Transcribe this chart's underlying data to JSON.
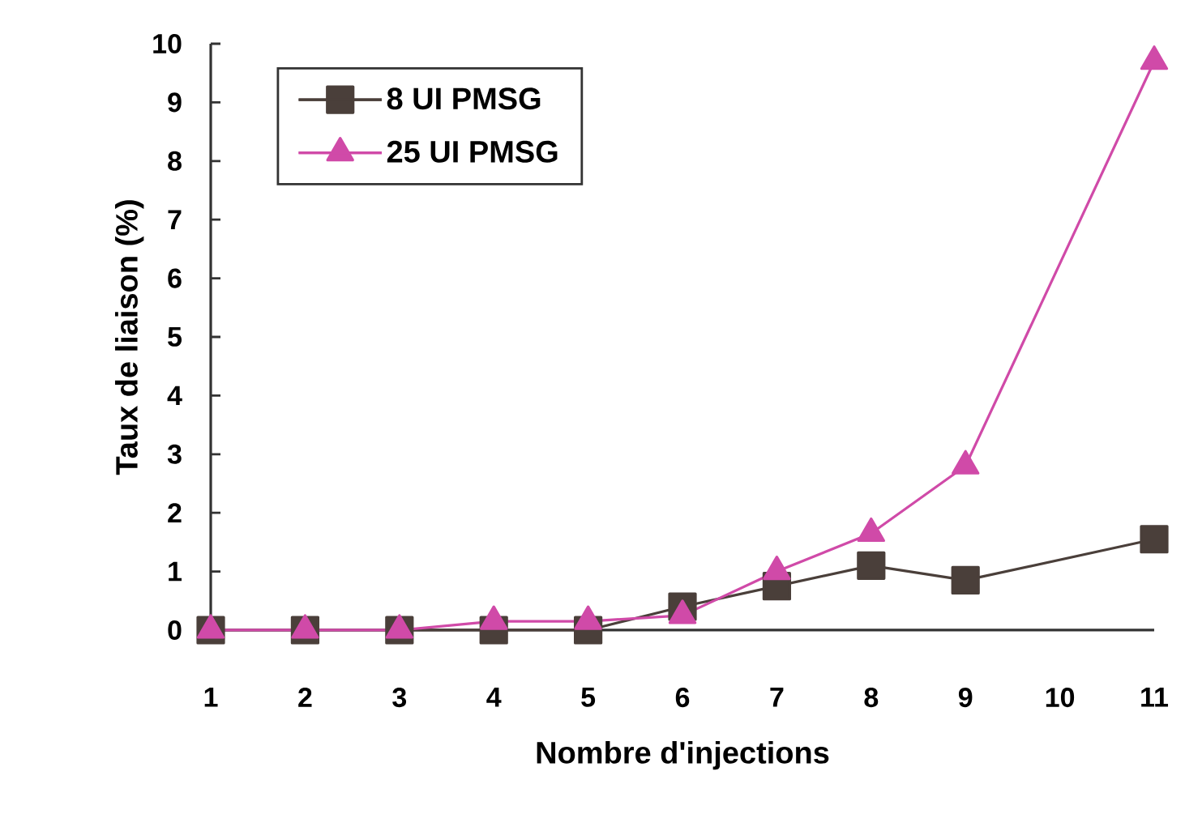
{
  "chart_data": {
    "type": "line",
    "xlabel": "Nombre d'injections",
    "ylabel": "Taux de liaison (%)",
    "x": [
      1,
      2,
      3,
      4,
      5,
      6,
      7,
      8,
      9,
      11
    ],
    "xlim": [
      1,
      11
    ],
    "xticks": [
      1,
      2,
      3,
      4,
      5,
      6,
      7,
      8,
      9,
      10,
      11
    ],
    "ylim": [
      0,
      10
    ],
    "yticks": [
      0,
      1,
      2,
      3,
      4,
      5,
      6,
      7,
      8,
      9,
      10
    ],
    "grid": false,
    "legend": "top left",
    "line_style": "solid",
    "series": [
      {
        "name": "8 UI PMSG",
        "color": "#4a3f3a",
        "marker": "square",
        "values": [
          0,
          0,
          0,
          0,
          0,
          0.4,
          0.75,
          1.1,
          0.85,
          1.55
        ]
      },
      {
        "name": "25 UI PMSG",
        "color": "#d04aa8",
        "marker": "triangle",
        "values": [
          0,
          0,
          0,
          0.15,
          0.15,
          0.25,
          1.0,
          1.65,
          2.8,
          9.7
        ]
      }
    ]
  }
}
